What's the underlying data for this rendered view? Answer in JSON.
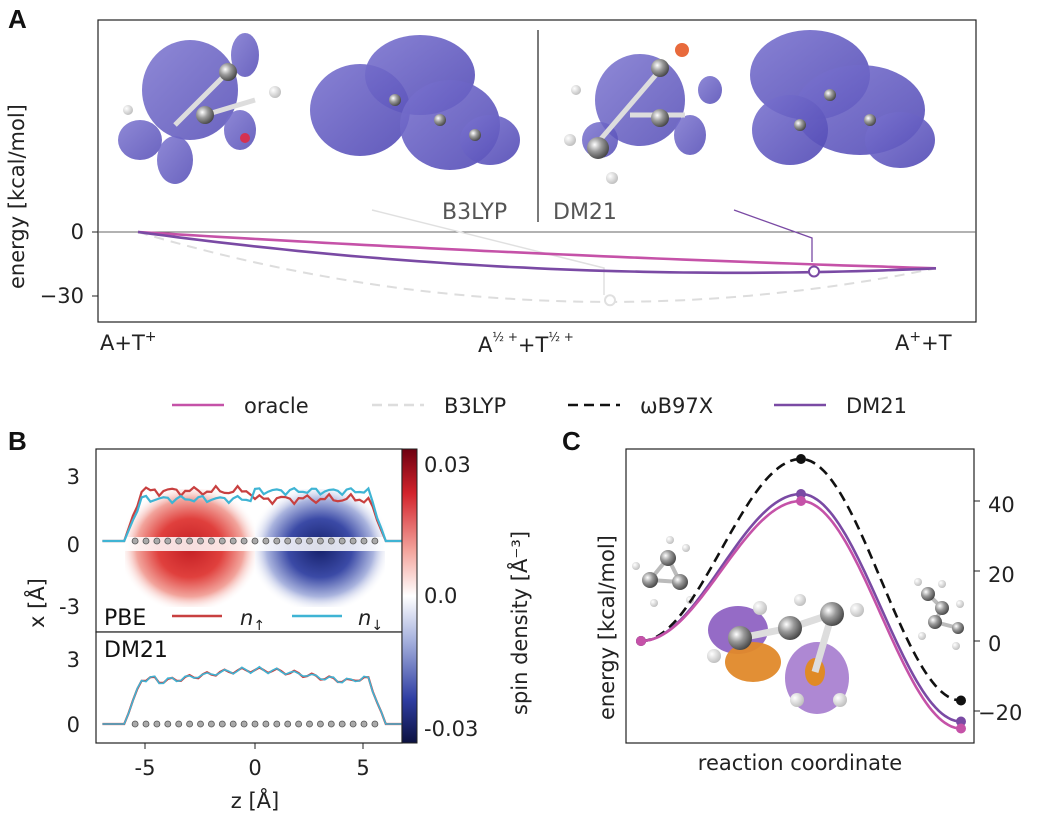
{
  "colors": {
    "oracle": "#c552a8",
    "b3lyp": "#dddddd",
    "wb97x": "#111111",
    "dm21": "#7a4aa4",
    "density_blue": "#5a50b8",
    "spin_up": "#c84040",
    "spin_down": "#3fb4d4",
    "orange": "#e08a26"
  },
  "legend": [
    {
      "key": "oracle",
      "label": "oracle",
      "style": "solid"
    },
    {
      "key": "b3lyp",
      "label": "B3LYP",
      "style": "dashed"
    },
    {
      "key": "wb97x",
      "label": "ωB97X",
      "style": "dashed"
    },
    {
      "key": "dm21",
      "label": "DM21",
      "style": "solid"
    }
  ],
  "chart_data": [
    {
      "panel": "A",
      "type": "line",
      "ylabel": "energy [kcal/mol]",
      "xticks": [
        "A+T⁺",
        "A½⁺+T½⁺",
        "A⁺+T"
      ],
      "yticks": [
        0,
        -30
      ],
      "ylim": [
        -42,
        100
      ],
      "x": [
        0,
        0.5,
        1
      ],
      "series": [
        {
          "name": "oracle",
          "values": [
            0,
            -10,
            -17
          ]
        },
        {
          "name": "B3LYP",
          "values": [
            0,
            -32,
            -17
          ]
        },
        {
          "name": "DM21",
          "values": [
            0,
            -17,
            -17
          ]
        }
      ],
      "annotations": [
        "B3LYP",
        "DM21"
      ]
    },
    {
      "panel": "B",
      "type": "heatmap",
      "xlabel": "z [Å]",
      "ylabel": "x [Å]",
      "colorbar_label": "spin density [Å⁻³]",
      "colorbar_ticks": [
        "0.03",
        "0.0",
        "-0.03"
      ],
      "xticks": [
        "-5",
        "0",
        "5"
      ],
      "top_yticks": [
        "3",
        "0",
        "-3"
      ],
      "bottom_yticks": [
        "3",
        "0"
      ],
      "xlim": [
        -7,
        7
      ],
      "subplots": [
        "PBE",
        "DM21"
      ],
      "series": [
        "n↑",
        "n↓"
      ]
    },
    {
      "panel": "C",
      "type": "line",
      "xlabel": "reaction coordinate",
      "ylabel": "energy [kcal/mol]",
      "yticks": [
        40,
        20,
        0,
        -20
      ],
      "ylim": [
        -28,
        56
      ],
      "series": [
        {
          "name": "ωB97X",
          "values": [
            0,
            52,
            -17
          ]
        },
        {
          "name": "DM21",
          "values": [
            0,
            42,
            -23
          ]
        },
        {
          "name": "oracle",
          "values": [
            0,
            40,
            -25
          ]
        }
      ]
    }
  ],
  "labels": {
    "panel_a": "A",
    "panel_b": "B",
    "panel_c": "C",
    "a_ylabel": "energy [kcal/mol]",
    "a_ytick0": "0",
    "a_ytick1": "−30",
    "a_xtick0_base": "A+T",
    "a_xtick0_sup": "+",
    "a_xtick1_a": "A",
    "a_xtick1_mid": "+T",
    "a_xtick1_frac": "½ +",
    "a_xtick2_base": "A",
    "a_xtick2_sup": "+",
    "a_xtick2_tail": "+T",
    "a_ann_b3lyp": "B3LYP",
    "a_ann_dm21": "DM21",
    "b_xlabel": "z [Å]",
    "b_ylabel": "x [Å]",
    "b_cbar_label": "spin density [Å⁻³]",
    "b_cbar_top": "0.03",
    "b_cbar_mid": "0.0",
    "b_cbar_bot": "-0.03",
    "b_xt0": "-5",
    "b_xt1": "0",
    "b_xt2": "5",
    "b_yt_top3": "3",
    "b_yt_top0": "0",
    "b_yt_topm3": "-3",
    "b_yt_bot3": "3",
    "b_yt_bot0": "0",
    "b_pbe": "PBE",
    "b_dm21": "DM21",
    "b_nup": "n",
    "b_nup_sub": "↑",
    "b_ndn": "n",
    "b_ndn_sub": "↓",
    "c_xlabel": "reaction coordinate",
    "c_ylabel": "energy [kcal/mol]",
    "c_yt40": "40",
    "c_yt20": "20",
    "c_yt0": "0",
    "c_ytm20": "−20"
  }
}
